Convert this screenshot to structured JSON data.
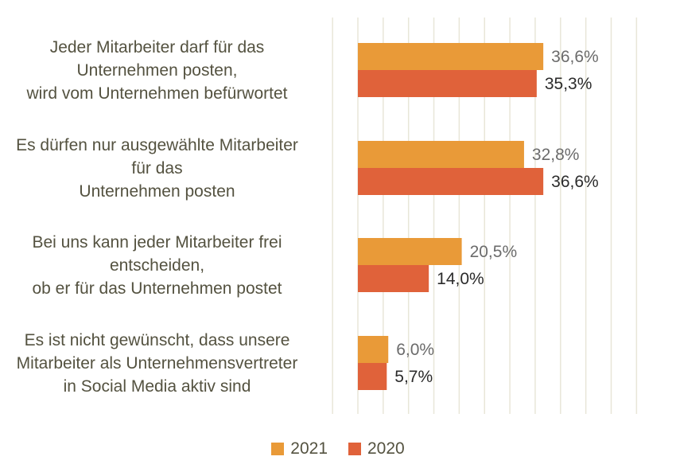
{
  "chart_data": {
    "type": "bar",
    "orientation": "horizontal",
    "categories": [
      [
        "Jeder Mitarbeiter darf für das",
        "Unternehmen posten,",
        "wird vom Unternehmen befürwortet"
      ],
      [
        "Es dürfen nur ausgewählte Mitarbeiter",
        "für das",
        "Unternehmen posten"
      ],
      [
        "Bei uns kann jeder Mitarbeiter frei",
        "entscheiden,",
        "ob er für das Unternehmen postet"
      ],
      [
        "Es ist nicht gewünscht, dass unsere",
        "Mitarbeiter als Unternehmensvertreter",
        "in Social Media aktiv sind"
      ]
    ],
    "series": [
      {
        "name": "2021",
        "color": "#E99A38",
        "values": [
          36.6,
          32.8,
          20.5,
          6.0
        ],
        "labels": [
          "36,6%",
          "32,8%",
          "20,5%",
          "6,0%"
        ]
      },
      {
        "name": "2020",
        "color": "#E0623A",
        "values": [
          35.3,
          36.6,
          14.0,
          5.7
        ],
        "labels": [
          "35,3%",
          "36,6%",
          "14,0%",
          "5,7%"
        ]
      }
    ],
    "xlim": [
      -5,
      55
    ],
    "grid": true,
    "legend_position": "bottom"
  }
}
